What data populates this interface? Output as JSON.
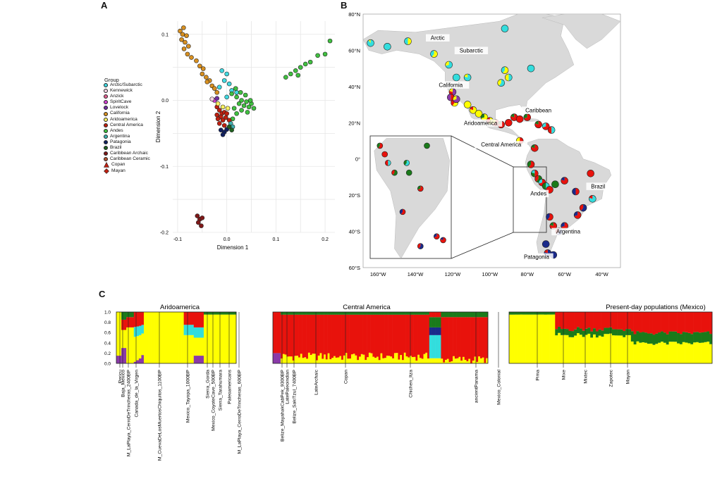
{
  "panels": {
    "a": "A",
    "b": "B",
    "c": "C"
  },
  "colors": {
    "yellow": "#ffff00",
    "red": "#e8120c",
    "green": "#1a7a1a",
    "cyan": "#33dddd",
    "purple": "#8a3aa8",
    "blue": "#1a2a8a",
    "land": "#d9d9d9",
    "sea": "#ffffff"
  },
  "legend": {
    "title": "Group",
    "groups": [
      {
        "label": "Arctic/Subarctic",
        "color": "#40d8e0"
      },
      {
        "label": "Kennewick",
        "color": "#f0d0e0"
      },
      {
        "label": "Anzick",
        "color": "#e06090"
      },
      {
        "label": "SpiritCave",
        "color": "#d040d0"
      },
      {
        "label": "Lovelock",
        "color": "#7030a0"
      },
      {
        "label": "California",
        "color": "#d89020"
      },
      {
        "label": "Aridoamerica",
        "color": "#f8f060"
      },
      {
        "label": "Central America",
        "color": "#c02010"
      },
      {
        "label": "Andes",
        "color": "#40c040"
      },
      {
        "label": "Argentina",
        "color": "#40b0b0"
      },
      {
        "label": "Patagonia",
        "color": "#102060"
      },
      {
        "label": "Brazil",
        "color": "#206020"
      },
      {
        "label": "Caribbean Archaic",
        "color": "#801818"
      },
      {
        "label": "Caribbean Ceramic",
        "color": "#b05030"
      }
    ],
    "markers": [
      {
        "label": "Copan",
        "shape": "triangle"
      },
      {
        "label": "Mayan",
        "shape": "diamond"
      }
    ]
  },
  "chart_data": [
    {
      "type": "scatter",
      "panel": "A",
      "xlabel": "Dimension 1",
      "ylabel": "Dimension 2",
      "xlim": [
        -0.11,
        0.22
      ],
      "ylim": [
        -0.2,
        0.12
      ],
      "xticks": [
        "-0.1",
        "0.0",
        "0.1",
        "0.2"
      ],
      "yticks": [
        "0.1",
        "0.0",
        "-0.1",
        "-0.2"
      ],
      "grid": true,
      "series": [
        {
          "group": "California",
          "points": [
            [
              -0.095,
              0.105
            ],
            [
              -0.088,
              0.11
            ],
            [
              -0.09,
              0.1
            ],
            [
              -0.082,
              0.098
            ],
            [
              -0.092,
              0.092
            ],
            [
              -0.085,
              0.088
            ],
            [
              -0.078,
              0.082
            ],
            [
              -0.087,
              0.078
            ],
            [
              -0.08,
              0.07
            ],
            [
              -0.072,
              0.065
            ],
            [
              -0.062,
              0.06
            ],
            [
              -0.055,
              0.052
            ],
            [
              -0.048,
              0.048
            ],
            [
              -0.05,
              0.04
            ],
            [
              -0.042,
              0.035
            ],
            [
              -0.035,
              0.03
            ],
            [
              -0.03,
              0.022
            ],
            [
              -0.04,
              0.028
            ],
            [
              -0.025,
              0.018
            ],
            [
              -0.02,
              0.012
            ]
          ]
        },
        {
          "group": "Arctic/Subarctic",
          "points": [
            [
              -0.01,
              0.045
            ],
            [
              0.0,
              0.04
            ],
            [
              -0.005,
              0.03
            ],
            [
              0.005,
              0.025
            ],
            [
              -0.015,
              0.02
            ],
            [
              0.01,
              0.015
            ],
            [
              0.02,
              0.012
            ],
            [
              0.0,
              0.005
            ]
          ]
        },
        {
          "group": "Andes",
          "points": [
            [
              0.01,
              0.01
            ],
            [
              0.02,
              0.005
            ],
            [
              0.03,
              0.0
            ],
            [
              0.025,
              -0.005
            ],
            [
              0.035,
              -0.008
            ],
            [
              0.04,
              -0.002
            ],
            [
              0.045,
              -0.01
            ],
            [
              0.05,
              -0.005
            ],
            [
              0.015,
              -0.012
            ],
            [
              0.03,
              -0.015
            ],
            [
              0.038,
              0.008
            ],
            [
              0.055,
              -0.012
            ],
            [
              0.02,
              -0.02
            ],
            [
              0.012,
              -0.028
            ],
            [
              0.042,
              -0.018
            ],
            [
              0.028,
              0.012
            ],
            [
              0.018,
              0.018
            ],
            [
              0.048,
              0.0
            ]
          ]
        },
        {
          "group": "Andes",
          "points": [
            [
              0.12,
              0.035
            ],
            [
              0.13,
              0.04
            ],
            [
              0.14,
              0.045
            ],
            [
              0.15,
              0.05
            ],
            [
              0.16,
              0.055
            ],
            [
              0.17,
              0.058
            ],
            [
              0.185,
              0.068
            ],
            [
              0.2,
              0.07
            ],
            [
              0.21,
              0.09
            ],
            [
              0.145,
              0.038
            ]
          ]
        },
        {
          "group": "Central America",
          "points": [
            [
              -0.02,
              -0.01
            ],
            [
              -0.015,
              -0.015
            ],
            [
              -0.01,
              -0.02
            ],
            [
              -0.005,
              -0.018
            ],
            [
              -0.012,
              -0.025
            ],
            [
              -0.018,
              -0.028
            ],
            [
              -0.008,
              -0.03
            ],
            [
              -0.002,
              -0.026
            ],
            [
              -0.015,
              -0.035
            ],
            [
              -0.005,
              -0.038
            ],
            [
              0.0,
              -0.02
            ],
            [
              -0.02,
              -0.022
            ],
            [
              0.005,
              -0.03
            ]
          ]
        },
        {
          "group": "Patagonia",
          "points": [
            [
              -0.012,
              -0.045
            ],
            [
              -0.005,
              -0.048
            ],
            [
              0.0,
              -0.044
            ],
            [
              -0.008,
              -0.052
            ]
          ]
        },
        {
          "group": "Caribbean Archaic",
          "points": [
            [
              -0.06,
              -0.175
            ],
            [
              -0.055,
              -0.18
            ],
            [
              -0.058,
              -0.185
            ],
            [
              -0.05,
              -0.178
            ],
            [
              -0.052,
              -0.19
            ]
          ]
        },
        {
          "group": "Aridoamerica",
          "points": [
            [
              -0.018,
              -0.005
            ],
            [
              -0.008,
              -0.01
            ],
            [
              0.002,
              -0.012
            ]
          ]
        },
        {
          "group": "SpiritCave",
          "points": [
            [
              -0.025,
              0.0
            ]
          ]
        },
        {
          "group": "Lovelock",
          "points": [
            [
              -0.02,
              0.003
            ]
          ]
        },
        {
          "group": "Kennewick",
          "points": [
            [
              -0.03,
              0.002
            ]
          ]
        },
        {
          "group": "Argentina",
          "points": [
            [
              0.008,
              -0.035
            ],
            [
              0.012,
              -0.04
            ]
          ]
        },
        {
          "group": "Brazil",
          "points": [
            [
              0.005,
              -0.04
            ],
            [
              0.01,
              -0.045
            ]
          ]
        }
      ]
    },
    {
      "type": "bar",
      "panel": "C",
      "stacked": true,
      "ylim": [
        0,
        1
      ],
      "yticks": [
        "0.0",
        "0.2",
        "0.4",
        "0.6",
        "0.8",
        "1.0"
      ],
      "groups": [
        {
          "title": "Aridoamerica",
          "labels": [
            "Pericu",
            "Baja_Mexico",
            "M_LaPlaya_CerroDeTrincheras_2400BP",
            "Canada_de_la_Virgen",
            "M_CuevaDeLosMuertosChiquitos_1100BP",
            "Mexico_Tayopa_1000BP",
            "Sierra_Gorda",
            "Mexico_CoyoteCave_500BP",
            "Sierra_Tarahumara",
            "Paleoamericans",
            "M_LaPlaya_CerroDeTrincheras_600BP"
          ]
        },
        {
          "title": "Central America",
          "labels": [
            "Belize_MayahakCabPek_9300BP",
            "LatePaleoindian",
            "Belize_SakiTzul_7400BP",
            "LateArchaic",
            "Copan",
            "Chichen_Itza",
            "ancientPanama",
            "Mexico_Colonial"
          ]
        },
        {
          "title": "Present-day populations (Mexico)",
          "labels": [
            "Pima",
            "Mixe",
            "Mixtec",
            "Zapotec",
            "Mayan"
          ]
        }
      ]
    }
  ],
  "map": {
    "panel": "B",
    "lat_ticks": [
      "80°N",
      "60°N",
      "40°N",
      "20°N",
      "0°",
      "20°S",
      "40°S",
      "60°S"
    ],
    "lon_ticks": [
      "160°W",
      "140°W",
      "120°W",
      "100°W",
      "80°W",
      "60°W",
      "40°W"
    ],
    "regions": [
      "Arctic",
      "Subarctic",
      "California",
      "Aridoamerica",
      "Caribbean",
      "Central America",
      "Andes",
      "Brazil",
      "Argentina",
      "Patagonia"
    ]
  }
}
